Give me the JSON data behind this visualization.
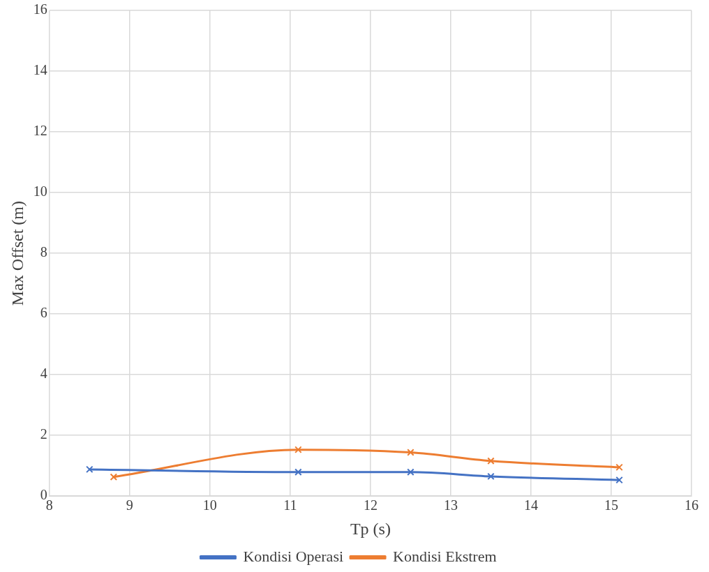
{
  "chart_data": {
    "type": "line",
    "xlabel": "Tp (s)",
    "ylabel": "Max Offset (m)",
    "series": [
      {
        "name": "Kondisi Operasi",
        "color": "#4472c4",
        "x": [
          8.5,
          11.1,
          12.5,
          13.5,
          15.1
        ],
        "values": [
          0.88,
          0.79,
          0.79,
          0.65,
          0.53
        ]
      },
      {
        "name": "Kondisi Ekstrem",
        "color": "#ed7d31",
        "x": [
          8.8,
          11.1,
          12.5,
          13.5,
          15.1
        ],
        "values": [
          0.63,
          1.53,
          1.44,
          1.16,
          0.95
        ]
      }
    ],
    "xlim": [
      8,
      16
    ],
    "xticks": [
      8,
      9,
      10,
      11,
      12,
      13,
      14,
      15,
      16
    ],
    "ylim": [
      0,
      16
    ],
    "yticks": [
      0,
      2,
      4,
      6,
      8,
      10,
      12,
      14,
      16
    ],
    "grid": true,
    "legend": "bottom",
    "marker": "cross",
    "line_style": "solid"
  }
}
